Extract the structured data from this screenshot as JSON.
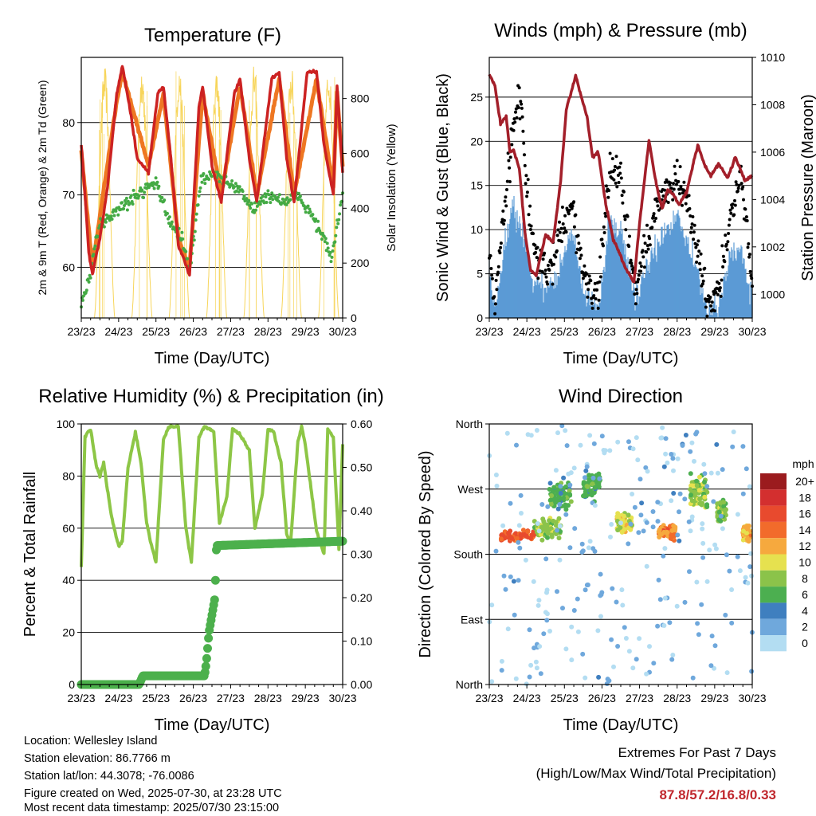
{
  "colors": {
    "temp_2m": "#cc2222",
    "temp_9m": "#ee7722",
    "dewpoint": "#44aa44",
    "insolation": "#f7d55a",
    "wind": "#5b9bd5",
    "gust": "#000000",
    "pressure": "#a31f2a",
    "humidity": "#8dc646",
    "precip": "#4cb04c",
    "extremes": "#c0272d"
  },
  "chart_data": [
    {
      "type": "line",
      "title": "Temperature (F)",
      "xlabel": "Time (Day/UTC)",
      "ylabel": "2m & 9m T (Red, Orange) & 2m Td (Green)",
      "y2label": "Solar Insolation (Yellow)",
      "x_ticks": [
        "23/23",
        "24/23",
        "25/23",
        "26/23",
        "27/23",
        "28/23",
        "29/23",
        "30/23"
      ],
      "xlim": [
        0,
        7
      ],
      "ylim": [
        53,
        89
      ],
      "y_ticks": [
        60,
        70,
        80
      ],
      "y2lim": [
        0,
        950
      ],
      "y2_ticks": [
        0,
        200,
        400,
        600,
        800
      ],
      "grid": true,
      "series": [
        {
          "name": "2m T",
          "x": [
            0,
            0.1,
            0.2,
            0.3,
            0.5,
            0.7,
            0.95,
            1.1,
            1.3,
            1.5,
            1.8,
            2.05,
            2.2,
            2.4,
            2.6,
            2.9,
            3.15,
            3.25,
            3.5,
            3.75,
            4.1,
            4.25,
            4.5,
            4.7,
            5.1,
            5.3,
            5.5,
            5.7,
            6.05,
            6.3,
            6.5,
            6.75,
            6.85,
            7
          ],
          "y": [
            77,
            70,
            62,
            59,
            64,
            71,
            84,
            87.8,
            82,
            75,
            73,
            84,
            85,
            75,
            63,
            59,
            82,
            85,
            74,
            69,
            84,
            86,
            75,
            69,
            86,
            87,
            75,
            69,
            87,
            87,
            77,
            70,
            85,
            73
          ]
        },
        {
          "name": "9m T",
          "x": [
            0,
            0.3,
            0.95,
            1.1,
            1.8,
            2.2,
            2.6,
            2.9,
            3.25,
            3.75,
            4.25,
            4.7,
            5.3,
            5.7,
            6.3,
            6.75,
            6.85,
            7
          ],
          "y": [
            76,
            60,
            83,
            87,
            74,
            84,
            64,
            60,
            84,
            70,
            85,
            70,
            86,
            70,
            86,
            71,
            84,
            74
          ]
        },
        {
          "name": "2m Td",
          "x": [
            0,
            0.2,
            0.5,
            1.0,
            1.5,
            2.0,
            2.3,
            2.7,
            2.9,
            3.2,
            3.5,
            3.8,
            4.2,
            4.6,
            5.0,
            5.5,
            5.8,
            6.2,
            6.5,
            6.7,
            7
          ],
          "y": [
            55,
            58,
            66,
            68,
            70,
            72,
            67,
            64,
            59,
            72,
            73,
            72,
            71,
            68,
            70,
            69,
            70,
            67,
            64,
            61,
            70
          ]
        },
        {
          "name": "Solar Insolation",
          "axis": "y2",
          "days": 7,
          "peak": 920
        }
      ]
    },
    {
      "type": "line",
      "title": "Winds (mph) & Pressure (mb)",
      "xlabel": "Time (Day/UTC)",
      "ylabel": "Sonic Wind & Gust (Blue, Black)",
      "y2label": "Station Pressure (Maroon)",
      "x_ticks": [
        "23/23",
        "24/23",
        "25/23",
        "26/23",
        "27/23",
        "28/23",
        "29/23",
        "30/23"
      ],
      "xlim": [
        0,
        7
      ],
      "ylim": [
        0,
        29.5
      ],
      "y_ticks": [
        0,
        5,
        10,
        15,
        20,
        25
      ],
      "y2lim": [
        999,
        1010
      ],
      "y2_ticks": [
        1000,
        1002,
        1004,
        1006,
        1008,
        1010
      ],
      "grid": true,
      "series": [
        {
          "name": "Wind",
          "x": [
            0,
            0.15,
            0.4,
            0.6,
            0.9,
            1.2,
            1.6,
            1.9,
            2.2,
            2.5,
            2.9,
            3.2,
            3.5,
            3.9,
            4.2,
            4.6,
            5.0,
            5.4,
            5.8,
            6.1,
            6.4,
            6.7,
            7
          ],
          "y": [
            6,
            1,
            8,
            13,
            9,
            4,
            3,
            6,
            10,
            3,
            1,
            11,
            10,
            2,
            6,
            9,
            12,
            7,
            1,
            1,
            7,
            8,
            2
          ]
        },
        {
          "name": "Gust",
          "x": [
            0,
            0.15,
            0.4,
            0.6,
            0.8,
            1.0,
            1.2,
            1.6,
            1.9,
            2.2,
            2.5,
            2.9,
            3.2,
            3.5,
            3.9,
            4.2,
            4.6,
            5.0,
            5.4,
            5.8,
            6.1,
            6.4,
            6.7,
            7
          ],
          "y": [
            8,
            1,
            13,
            20,
            26,
            15,
            7,
            5,
            10,
            13,
            5,
            2,
            17,
            16,
            3,
            9,
            14,
            16,
            11,
            2,
            3,
            11,
            16,
            4
          ]
        },
        {
          "name": "Pressure",
          "axis": "y2",
          "x": [
            0,
            0.15,
            0.3,
            0.45,
            0.55,
            0.65,
            0.8,
            0.95,
            1.1,
            1.25,
            1.35,
            1.5,
            1.7,
            1.9,
            2.05,
            2.3,
            2.6,
            2.75,
            2.9,
            3.1,
            3.3,
            3.45,
            3.6,
            3.85,
            4.0,
            4.25,
            4.45,
            4.6,
            4.75,
            4.9,
            5.05,
            5.25,
            5.55,
            5.75,
            5.9,
            6.1,
            6.35,
            6.55,
            6.8,
            7
          ],
          "y": [
            1009.3,
            1008.8,
            1007.2,
            1007.5,
            1006.0,
            1006.1,
            1005.3,
            1002.6,
            1001.0,
            1000.8,
            1001.5,
            1002.5,
            1002.2,
            1004.8,
            1007.8,
            1009.2,
            1007.5,
            1005.8,
            1006.0,
            1003.8,
            1002.3,
            1001.8,
            1001.2,
            1000.5,
            1003.0,
            1006.5,
            1004.6,
            1003.6,
            1004.4,
            1004.2,
            1003.8,
            1004.3,
            1006.3,
            1005.4,
            1005.0,
            1005.5,
            1004.9,
            1005.8,
            1004.8,
            1005.0
          ]
        }
      ]
    },
    {
      "type": "line",
      "title": "Relative Humidity (%) & Precipitation (in)",
      "xlabel": "Time (Day/UTC)",
      "ylabel": "Percent & Total Rainfall",
      "x_ticks": [
        "23/23",
        "24/23",
        "25/23",
        "26/23",
        "27/23",
        "28/23",
        "29/23",
        "30/23"
      ],
      "xlim": [
        0,
        7
      ],
      "ylim": [
        0,
        100
      ],
      "y_ticks": [
        0,
        20,
        40,
        60,
        80,
        100
      ],
      "y2lim": [
        0,
        0.6
      ],
      "y2_ticks": [
        "0.00",
        "0.10",
        "0.20",
        "0.30",
        "0.40",
        "0.50",
        "0.60"
      ],
      "grid": true,
      "series": [
        {
          "name": "Relative Humidity",
          "x": [
            0,
            0.1,
            0.25,
            0.4,
            0.5,
            0.6,
            0.8,
            1.0,
            1.1,
            1.25,
            1.45,
            1.6,
            1.75,
            1.85,
            2.0,
            2.2,
            2.35,
            2.6,
            2.8,
            2.95,
            3.15,
            3.3,
            3.55,
            3.7,
            3.9,
            4.05,
            4.25,
            4.5,
            4.65,
            4.85,
            5.0,
            5.15,
            5.35,
            5.5,
            5.6,
            5.8,
            5.9,
            6.0,
            6.3,
            6.5,
            6.6,
            6.75,
            6.9,
            7
          ],
          "y": [
            45,
            95,
            98,
            84,
            80,
            85,
            65,
            53,
            55,
            83,
            97,
            85,
            62,
            55,
            47,
            94,
            99,
            99,
            60,
            47,
            95,
            99,
            97,
            62,
            72,
            98,
            96,
            90,
            60,
            73,
            98,
            97,
            85,
            58,
            53,
            93,
            99,
            92,
            59,
            50,
            98,
            95,
            52,
            92
          ]
        },
        {
          "name": "Precipitation",
          "axis": "y2",
          "x": [
            0,
            1.55,
            1.65,
            3.3,
            3.35,
            3.42,
            3.5,
            3.58,
            3.62,
            7
          ],
          "y": [
            0.0,
            0.0,
            0.02,
            0.02,
            0.05,
            0.12,
            0.16,
            0.2,
            0.32,
            0.33
          ]
        }
      ]
    },
    {
      "type": "scatter",
      "title": "Wind Direction",
      "xlabel": "Time (Day/UTC)",
      "ylabel": "Direction (Colored By Speed)",
      "x_ticks": [
        "23/23",
        "24/23",
        "25/23",
        "26/23",
        "27/23",
        "28/23",
        "29/23",
        "30/23"
      ],
      "xlim": [
        0,
        7
      ],
      "ylim": [
        0,
        360
      ],
      "y_ticks": [
        "North",
        "East",
        "South",
        "West",
        "North"
      ],
      "grid": true,
      "legend": {
        "title": "mph",
        "position": "right",
        "labels": [
          "20+",
          "18",
          "16",
          "14",
          "12",
          "10",
          "8",
          "6",
          "4",
          "2",
          "0"
        ],
        "colors": [
          "#9b1b1e",
          "#d32f2f",
          "#e84a2e",
          "#f26b2b",
          "#f6a93e",
          "#e6e14f",
          "#8bc34a",
          "#4caf50",
          "#3f7fbf",
          "#6fa8dc",
          "#b3ddf2"
        ]
      },
      "clusters": [
        {
          "x0": 0.3,
          "x1": 1.2,
          "dir": 205,
          "spread": 10,
          "speed": 15
        },
        {
          "x0": 1.2,
          "x1": 1.9,
          "dir": 215,
          "spread": 18,
          "speed": 8
        },
        {
          "x0": 1.6,
          "x1": 2.2,
          "dir": 260,
          "spread": 25,
          "speed": 6
        },
        {
          "x0": 2.5,
          "x1": 2.95,
          "dir": 275,
          "spread": 25,
          "speed": 6
        },
        {
          "x0": 3.4,
          "x1": 3.8,
          "dir": 225,
          "spread": 18,
          "speed": 10
        },
        {
          "x0": 4.5,
          "x1": 4.95,
          "dir": 210,
          "spread": 15,
          "speed": 13
        },
        {
          "x0": 5.35,
          "x1": 5.8,
          "dir": 265,
          "spread": 30,
          "speed": 8
        },
        {
          "x0": 6.05,
          "x1": 6.3,
          "dir": 240,
          "spread": 20,
          "speed": 8
        },
        {
          "x0": 6.75,
          "x1": 6.95,
          "dir": 210,
          "spread": 18,
          "speed": 12
        },
        {
          "x0": 0.0,
          "x1": 7.0,
          "dir": 180,
          "spread": 180,
          "speed": 1
        }
      ]
    }
  ],
  "info": {
    "location": "Location: Wellesley Island",
    "elevation": "Station elevation: 86.7766 m",
    "latlon": "Station lat/lon: 44.3078; -76.0086",
    "created": "Figure created on Wed, 2025-07-30, at 23:28 UTC",
    "recent": "Most recent data timestamp: 2025/07/30 23:15:00"
  },
  "extremes": {
    "title": "Extremes For Past 7 Days",
    "subtitle": "(High/Low/Max Wind/Total Precipitation)",
    "values": "87.8/57.2/16.8/0.33"
  }
}
